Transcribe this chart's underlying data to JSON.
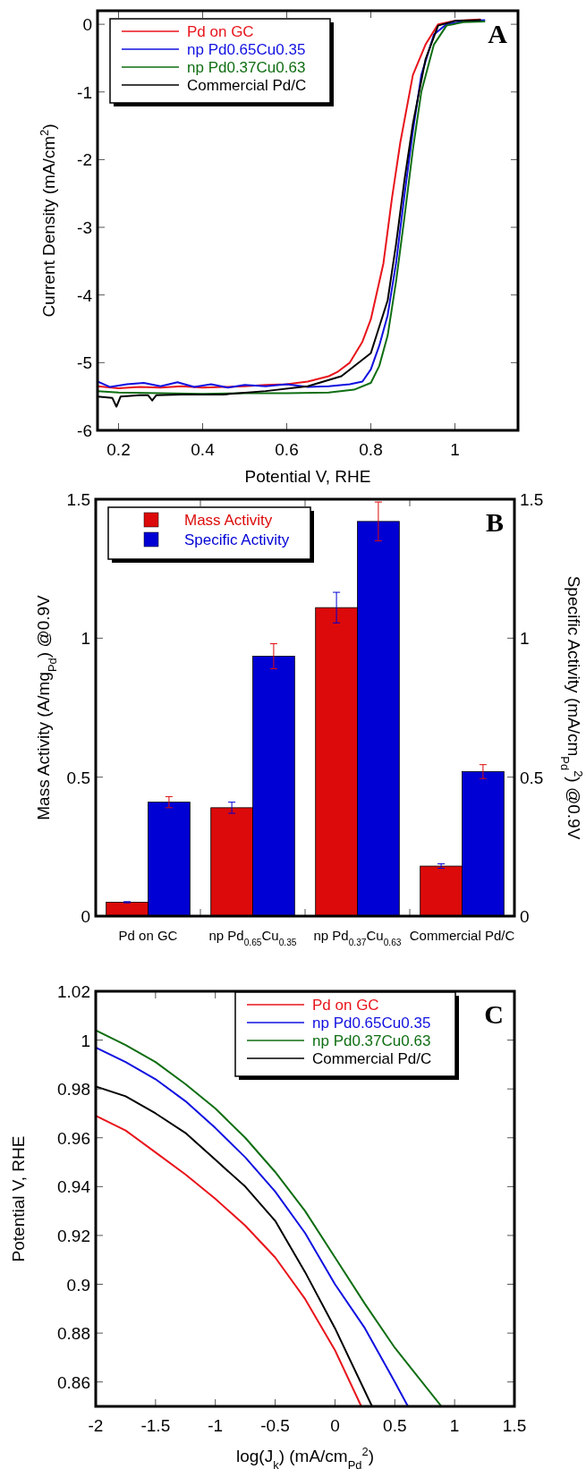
{
  "chart_data": [
    {
      "type": "line",
      "xlabel": "Potential V, RHE",
      "ylabel": "Current Density (mA/cm$^{2}$)",
      "xlim": [
        0.15,
        1.15
      ],
      "ylim": [
        -6,
        0.2
      ],
      "xticks": [
        0.2,
        0.4,
        0.6,
        0.8,
        1
      ],
      "yticks": [
        -6,
        -5,
        -4,
        -3,
        -2,
        -1,
        0
      ],
      "legend": "top left",
      "annotations": [
        "A"
      ],
      "series": [
        {
          "name": "Pd on GC",
          "color": "#e8141b",
          "x": [
            0.15,
            0.2,
            0.25,
            0.3,
            0.35,
            0.4,
            0.45,
            0.5,
            0.55,
            0.6,
            0.65,
            0.7,
            0.72,
            0.75,
            0.78,
            0.8,
            0.83,
            0.85,
            0.87,
            0.9,
            0.93,
            0.96,
            1.0,
            1.06
          ],
          "values": [
            -5.35,
            -5.38,
            -5.36,
            -5.37,
            -5.35,
            -5.37,
            -5.36,
            -5.35,
            -5.33,
            -5.32,
            -5.28,
            -5.2,
            -5.14,
            -5.0,
            -4.69,
            -4.36,
            -3.53,
            -2.58,
            -1.75,
            -0.75,
            -0.3,
            0.0,
            0.05,
            0.07
          ]
        },
        {
          "name": "np Pd0.65Cu0.35",
          "color": "#1010e0",
          "x": [
            0.15,
            0.18,
            0.22,
            0.26,
            0.3,
            0.34,
            0.38,
            0.42,
            0.46,
            0.5,
            0.55,
            0.6,
            0.65,
            0.7,
            0.75,
            0.78,
            0.8,
            0.82,
            0.84,
            0.86,
            0.88,
            0.9,
            0.92,
            0.95,
            0.98,
            1.02,
            1.07
          ],
          "values": [
            -5.28,
            -5.36,
            -5.32,
            -5.3,
            -5.35,
            -5.29,
            -5.36,
            -5.32,
            -5.37,
            -5.33,
            -5.35,
            -5.32,
            -5.36,
            -5.35,
            -5.32,
            -5.28,
            -5.1,
            -4.75,
            -4.3,
            -3.53,
            -2.52,
            -1.58,
            -0.75,
            -0.15,
            0.0,
            0.04,
            0.06
          ]
        },
        {
          "name": "np Pd0.37Cu0.63",
          "color": "#0f6e12",
          "x": [
            0.15,
            0.2,
            0.3,
            0.4,
            0.5,
            0.6,
            0.7,
            0.76,
            0.8,
            0.82,
            0.84,
            0.86,
            0.88,
            0.9,
            0.92,
            0.95,
            0.98,
            1.02,
            1.07
          ],
          "values": [
            -5.42,
            -5.44,
            -5.45,
            -5.46,
            -5.45,
            -5.45,
            -5.44,
            -5.4,
            -5.3,
            -5.05,
            -4.6,
            -3.8,
            -2.85,
            -1.85,
            -1.0,
            -0.3,
            -0.02,
            0.03,
            0.04
          ]
        },
        {
          "name": "Commercial Pd/C",
          "color": "#000000",
          "x": [
            0.15,
            0.185,
            0.195,
            0.205,
            0.25,
            0.27,
            0.28,
            0.29,
            0.35,
            0.45,
            0.55,
            0.65,
            0.73,
            0.8,
            0.84,
            0.86,
            0.88,
            0.9,
            0.93,
            0.96,
            1.0,
            1.06
          ],
          "values": [
            -5.5,
            -5.52,
            -5.65,
            -5.5,
            -5.48,
            -5.48,
            -5.56,
            -5.48,
            -5.47,
            -5.47,
            -5.42,
            -5.35,
            -5.2,
            -4.86,
            -4.08,
            -3.25,
            -2.3,
            -1.47,
            -0.52,
            -0.02,
            0.05,
            0.06
          ]
        }
      ]
    },
    {
      "type": "bar",
      "ylabel": "Mass Activity (A/mg$_{Pd}$) @0.9V",
      "y2label": "Specific Activity (mA/cm$_{Pd}$$^{2}$) @0.9V",
      "categories": [
        "Pd on GC",
        "np Pd$_{0.65}$Cu$_{0.35}$",
        "np Pd$_{0.37}$Cu$_{0.63}$",
        "Commercial Pd/C"
      ],
      "ylim": [
        0,
        1.5
      ],
      "yticks": [
        0,
        0.5,
        1,
        1.5
      ],
      "y2lim": [
        0,
        1.5
      ],
      "y2ticks": [
        0,
        0.5,
        1,
        1.5
      ],
      "legend": "top left",
      "annotations": [
        "B"
      ],
      "series": [
        {
          "name": "Mass Activity",
          "color": "#dc0a0a",
          "values": [
            0.05,
            0.39,
            1.11,
            0.18
          ],
          "errors": [
            0.002,
            0.02,
            0.055,
            0.008
          ]
        },
        {
          "name": "Specific Activity",
          "color": "#0000d4",
          "values": [
            0.41,
            0.935,
            1.42,
            0.52
          ],
          "errors": [
            0.02,
            0.045,
            0.07,
            0.025
          ]
        }
      ]
    },
    {
      "type": "line",
      "xlabel": "log(J$_{k}$) (mA/cm$_{Pd}$$^{2}$)",
      "ylabel": "Potential V, RHE",
      "xlim": [
        -2,
        1.5
      ],
      "ylim": [
        0.85,
        1.02
      ],
      "xticks": [
        -2,
        -1.5,
        -1,
        -0.5,
        0,
        0.5,
        1,
        1.5
      ],
      "yticks": [
        0.86,
        0.88,
        0.9,
        0.92,
        0.94,
        0.96,
        0.98,
        1,
        1.02
      ],
      "legend": "top",
      "annotations": [
        "C"
      ],
      "series": [
        {
          "name": "Pd on GC",
          "color": "#e8141b",
          "x": [
            -2,
            -1.75,
            -1.5,
            -1.25,
            -1,
            -0.75,
            -0.5,
            -0.25,
            0,
            0.22
          ],
          "values": [
            0.969,
            0.963,
            0.954,
            0.945,
            0.935,
            0.924,
            0.911,
            0.894,
            0.873,
            0.85
          ]
        },
        {
          "name": "np Pd0.65Cu0.35",
          "color": "#1010e0",
          "x": [
            -2,
            -1.75,
            -1.5,
            -1.25,
            -1,
            -0.75,
            -0.5,
            -0.25,
            0,
            0.25,
            0.5,
            0.61
          ],
          "values": [
            0.997,
            0.991,
            0.984,
            0.975,
            0.964,
            0.952,
            0.938,
            0.921,
            0.9,
            0.882,
            0.86,
            0.85
          ]
        },
        {
          "name": "np Pd0.37Cu0.63",
          "color": "#0f6e12",
          "x": [
            -2,
            -1.75,
            -1.5,
            -1.25,
            -1,
            -0.75,
            -0.5,
            -0.25,
            0,
            0.25,
            0.5,
            0.89
          ],
          "values": [
            1.004,
            0.998,
            0.991,
            0.982,
            0.972,
            0.96,
            0.946,
            0.93,
            0.911,
            0.892,
            0.874,
            0.85
          ]
        },
        {
          "name": "Commercial Pd/C",
          "color": "#000000",
          "x": [
            -2,
            -1.75,
            -1.5,
            -1.25,
            -1,
            -0.75,
            -0.5,
            -0.25,
            0,
            0.31
          ],
          "values": [
            0.981,
            0.977,
            0.97,
            0.962,
            0.951,
            0.94,
            0.926,
            0.905,
            0.882,
            0.85
          ]
        }
      ]
    }
  ]
}
